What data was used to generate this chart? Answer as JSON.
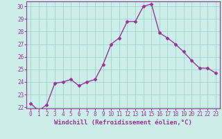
{
  "x": [
    0,
    1,
    2,
    3,
    4,
    5,
    6,
    7,
    8,
    9,
    10,
    11,
    12,
    13,
    14,
    15,
    16,
    17,
    18,
    19,
    20,
    21,
    22,
    23
  ],
  "y": [
    22.3,
    21.7,
    22.2,
    23.9,
    24.0,
    24.2,
    23.7,
    24.0,
    24.2,
    25.4,
    27.0,
    27.5,
    28.8,
    28.8,
    30.0,
    30.2,
    27.9,
    27.5,
    27.0,
    26.4,
    25.7,
    25.1,
    25.1,
    24.7
  ],
  "line_color": "#993399",
  "marker": "D",
  "markersize": 2.5,
  "linewidth": 1.0,
  "xlabel": "Windchill (Refroidissement éolien,°C)",
  "xlabel_fontsize": 6.5,
  "ylim_min": 21.9,
  "ylim_max": 30.4,
  "xlim_min": -0.5,
  "xlim_max": 23.5,
  "yticks": [
    22,
    23,
    24,
    25,
    26,
    27,
    28,
    29,
    30
  ],
  "xticks": [
    0,
    1,
    2,
    3,
    4,
    5,
    6,
    7,
    8,
    9,
    10,
    11,
    12,
    13,
    14,
    15,
    16,
    17,
    18,
    19,
    20,
    21,
    22,
    23
  ],
  "tick_fontsize": 5.5,
  "background_color": "#cceee8",
  "grid_color": "#99cccc",
  "axis_color": "#993399",
  "spine_color": "#993399"
}
